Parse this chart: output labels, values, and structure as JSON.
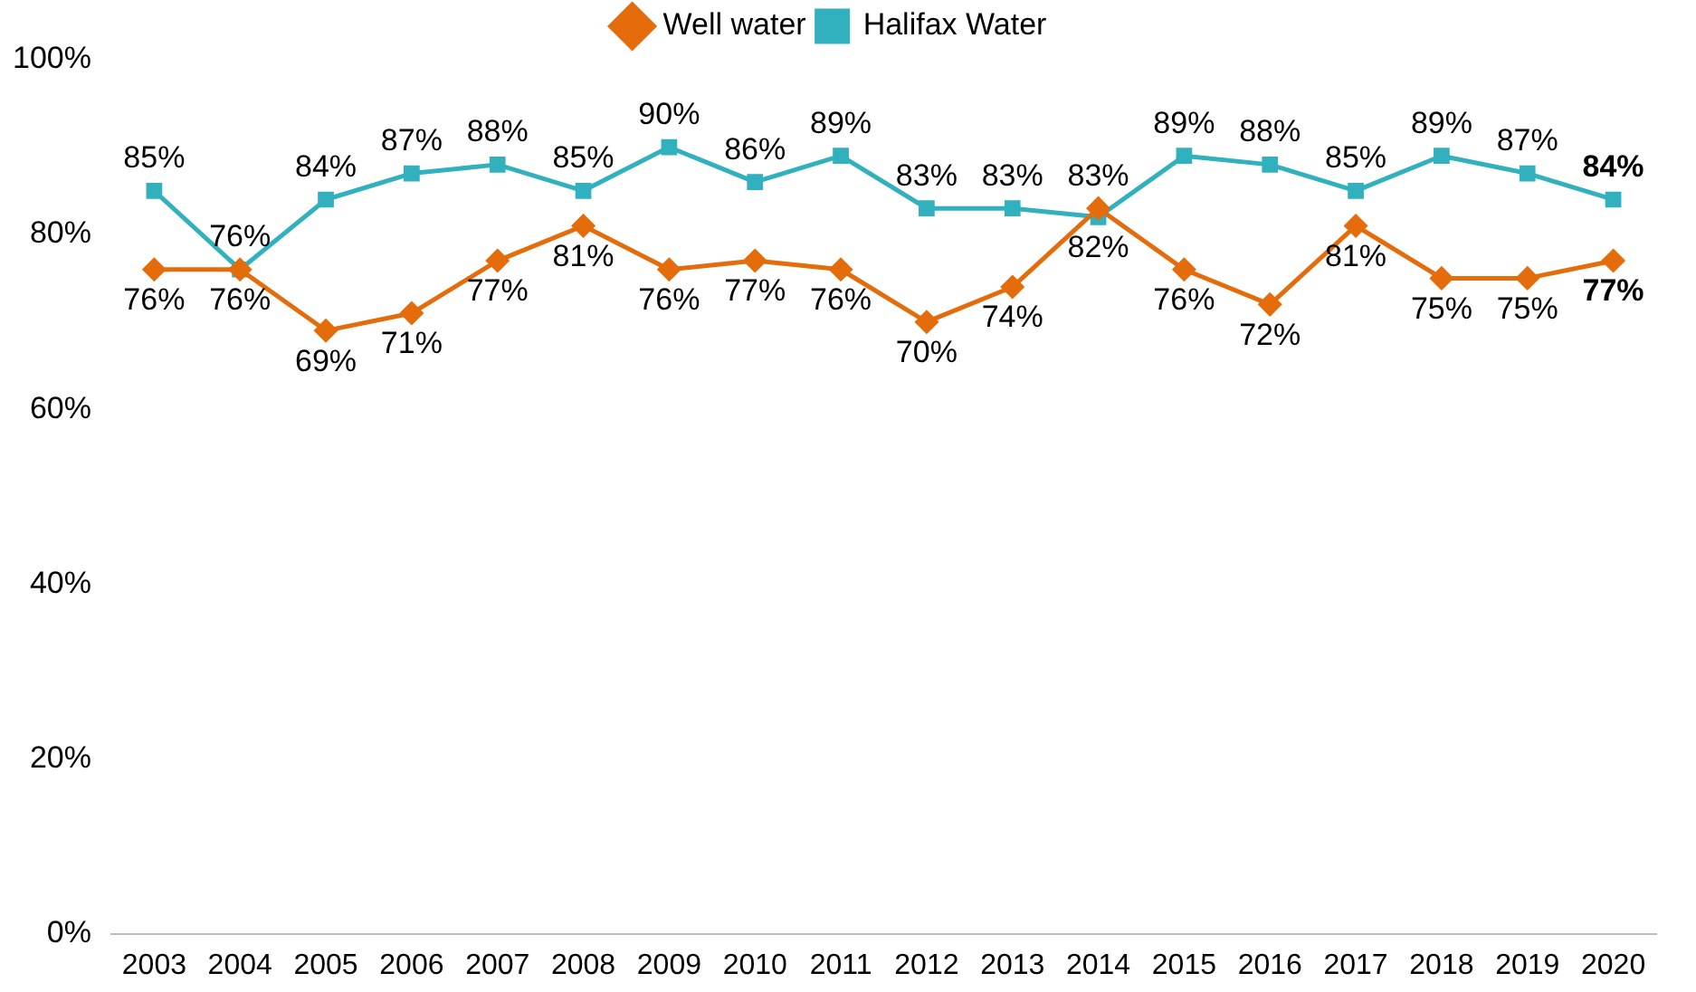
{
  "chart_data": {
    "type": "line",
    "categories": [
      "2003",
      "2004",
      "2005",
      "2006",
      "2007",
      "2008",
      "2009",
      "2010",
      "2011",
      "2012",
      "2013",
      "2014",
      "2015",
      "2016",
      "2017",
      "2018",
      "2019",
      "2020"
    ],
    "series": [
      {
        "name": "Well water",
        "color": "#e46c0a",
        "values": [
          76,
          76,
          69,
          71,
          77,
          81,
          76,
          77,
          76,
          70,
          74,
          83,
          76,
          72,
          81,
          75,
          75,
          77
        ],
        "marker": "diamond",
        "value_labels": [
          "76%",
          "76%",
          "69%",
          "71%",
          "77%",
          "81%",
          "76%",
          "77%",
          "76%",
          "70%",
          "74%",
          "83%",
          "76%",
          "72%",
          "81%",
          "75%",
          "75%",
          "77%"
        ]
      },
      {
        "name": "Halifax Water",
        "color": "#31b0bd",
        "values": [
          85,
          76,
          84,
          87,
          88,
          85,
          90,
          86,
          89,
          83,
          83,
          82,
          89,
          88,
          85,
          89,
          87,
          84
        ],
        "marker": "square",
        "value_labels": [
          "85%",
          "76%",
          "84%",
          "87%",
          "88%",
          "85%",
          "90%",
          "86%",
          "89%",
          "83%",
          "83%",
          "82%",
          "89%",
          "88%",
          "85%",
          "89%",
          "87%",
          "84%"
        ]
      }
    ],
    "ylim": [
      0,
      100
    ],
    "yticks": [
      {
        "value": 0,
        "label": "0%"
      },
      {
        "value": 20,
        "label": "20%"
      },
      {
        "value": 40,
        "label": "40%"
      },
      {
        "value": 60,
        "label": "60%"
      },
      {
        "value": 80,
        "label": "80%"
      },
      {
        "value": 100,
        "label": "100%"
      }
    ],
    "grid": false,
    "legend": "top",
    "line_style": "solid"
  }
}
